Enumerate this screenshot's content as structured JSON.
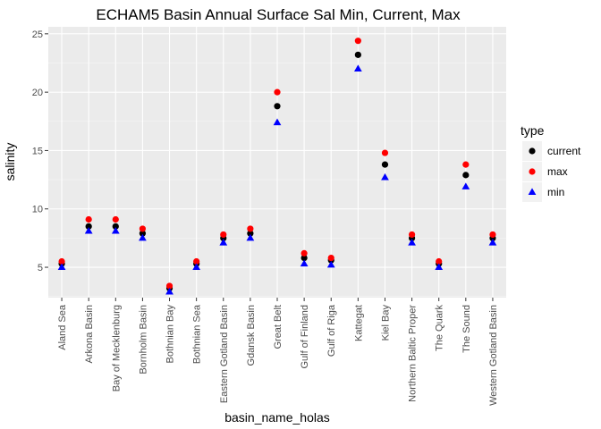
{
  "chart_data": {
    "type": "scatter",
    "title": "ECHAM5 Basin Annual Surface Sal Min, Current, Max",
    "xlabel": "basin_name_holas",
    "ylabel": "salinity",
    "ylim": [
      2.4,
      25.6
    ],
    "yticks": [
      5,
      10,
      15,
      20,
      25
    ],
    "grid": true,
    "legend_title": "type",
    "legend_position": "right",
    "categories": [
      "Aland Sea",
      "Arkona Basin",
      "Bay of Mecklenburg",
      "Bornholm Basin",
      "Bothnian Bay",
      "Bothnian Sea",
      "Eastern Gotland Basin",
      "Gdansk Basin",
      "Great Belt",
      "Gulf of Finland",
      "Gulf of Riga",
      "Kattegat",
      "Kiel Bay",
      "Northern Baltic Proper",
      "The Quark",
      "The Sound",
      "Western Gotland Basin"
    ],
    "series": [
      {
        "name": "current",
        "color": "#000000",
        "shape": "circle",
        "values": [
          5.3,
          8.5,
          8.5,
          7.9,
          3.2,
          5.3,
          7.5,
          7.9,
          18.8,
          5.8,
          5.6,
          23.2,
          13.8,
          7.5,
          5.3,
          12.9,
          7.5
        ]
      },
      {
        "name": "max",
        "color": "#ff0000",
        "shape": "circle",
        "values": [
          5.5,
          9.1,
          9.1,
          8.3,
          3.4,
          5.5,
          7.8,
          8.3,
          20.0,
          6.2,
          5.8,
          24.4,
          14.8,
          7.8,
          5.5,
          13.8,
          7.8
        ]
      },
      {
        "name": "min",
        "color": "#0000ff",
        "shape": "triangle",
        "values": [
          5.0,
          8.1,
          8.1,
          7.5,
          2.9,
          5.0,
          7.1,
          7.5,
          17.4,
          5.3,
          5.2,
          22.0,
          12.7,
          7.1,
          5.0,
          11.9,
          7.1
        ]
      }
    ]
  }
}
